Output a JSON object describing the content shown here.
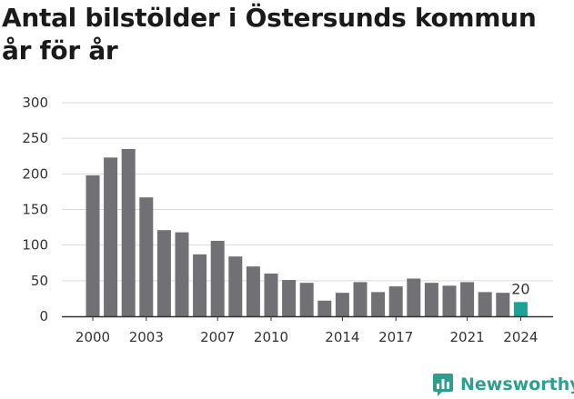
{
  "title": "Antal bilstölder i Östersunds kommun år för år",
  "brand": {
    "name": "Newsworthy",
    "color": "#2e9e8f",
    "icon": "newsworthy-chart-icon"
  },
  "colors": {
    "bar": "#717075",
    "highlight": "#1aa396",
    "grid": "#d9d9d9",
    "axis": "#333333"
  },
  "chart_data": {
    "type": "bar",
    "title": "Antal bilstölder i Östersunds kommun år för år",
    "xlabel": "",
    "ylabel": "",
    "ylim": [
      0,
      300
    ],
    "yticks": [
      0,
      50,
      100,
      150,
      200,
      250,
      300
    ],
    "xticks": [
      2000,
      2003,
      2007,
      2010,
      2014,
      2017,
      2021,
      2024
    ],
    "categories": [
      2000,
      2001,
      2002,
      2003,
      2004,
      2005,
      2006,
      2007,
      2008,
      2009,
      2010,
      2011,
      2012,
      2013,
      2014,
      2015,
      2016,
      2017,
      2018,
      2019,
      2020,
      2021,
      2022,
      2023,
      2024
    ],
    "values": [
      198,
      223,
      235,
      167,
      121,
      118,
      87,
      106,
      84,
      70,
      60,
      51,
      47,
      22,
      33,
      48,
      34,
      42,
      53,
      47,
      43,
      48,
      34,
      33,
      20
    ],
    "highlight": {
      "category": 2024,
      "label": "20"
    },
    "grid": true,
    "legend": "none"
  }
}
